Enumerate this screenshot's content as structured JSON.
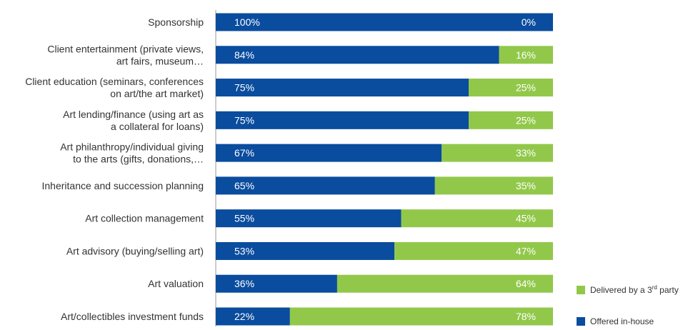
{
  "chart_data": {
    "type": "bar",
    "orientation": "horizontal",
    "stacked": true,
    "categories": [
      [
        "Sponsorship"
      ],
      [
        "Client entertainment (private views,",
        "art fairs, museum…"
      ],
      [
        "Client education (seminars, conferences",
        "on art/the art market)"
      ],
      [
        "Art lending/finance (using art as",
        "a collateral for loans)"
      ],
      [
        "Art philanthropy/individual giving",
        "to the arts (gifts, donations,…"
      ],
      [
        "Inheritance and succession planning"
      ],
      [
        "Art collection management"
      ],
      [
        "Art advisory (buying/selling art)"
      ],
      [
        "Art valuation"
      ],
      [
        "Art/collectibles investment funds"
      ]
    ],
    "series": [
      {
        "name": "Offered in-house",
        "color": "#0a4c9e",
        "values": [
          100,
          84,
          75,
          75,
          67,
          65,
          55,
          53,
          36,
          22
        ],
        "labels": [
          "100%",
          "84%",
          "75%",
          "75%",
          "67%",
          "65%",
          "55%",
          "53%",
          "36%",
          "22%"
        ]
      },
      {
        "name": "Delivered by a 3rd party",
        "color": "#92c84a",
        "values": [
          0,
          16,
          25,
          25,
          33,
          35,
          45,
          47,
          64,
          78
        ],
        "labels": [
          "0%",
          "16%",
          "25%",
          "25%",
          "33%",
          "35%",
          "45%",
          "47%",
          "64%",
          "78%"
        ]
      }
    ],
    "legend": {
      "position": "bottom-right",
      "items": [
        {
          "text": "Delivered by a 3",
          "sup": "rd",
          "text_after": " party",
          "color": "#92c84a"
        },
        {
          "text": "Offered in-house",
          "sup": "",
          "text_after": "",
          "color": "#0a4c9e"
        }
      ]
    },
    "xlim": [
      0,
      100
    ],
    "grid": false
  }
}
